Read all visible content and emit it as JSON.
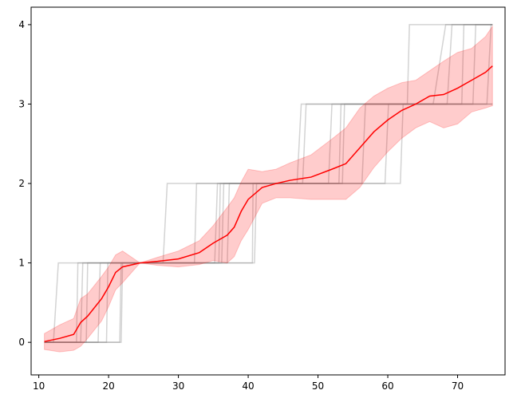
{
  "chart_data": {
    "type": "line",
    "xlim": [
      8.9,
      76.8
    ],
    "ylim": [
      -0.41,
      4.22
    ],
    "xticks": [
      10,
      20,
      30,
      40,
      50,
      60,
      70
    ],
    "yticks": [
      0,
      1,
      2,
      3,
      4
    ],
    "series": [
      {
        "color": "#808080",
        "alpha": 0.35,
        "x": [
          10.8,
          12.1,
          12.8,
          27.8,
          28.4,
          47.0,
          47.6,
          62.8,
          63.1,
          75
        ],
        "values": [
          0,
          0,
          1,
          1,
          2,
          2,
          3,
          3,
          4,
          4
        ]
      },
      {
        "color": "#808080",
        "alpha": 0.35,
        "x": [
          10.8,
          15.4,
          15.6,
          32.3,
          32.6,
          47.8,
          48.3,
          66.5,
          68.3,
          75
        ],
        "values": [
          0,
          0,
          1,
          1,
          2,
          2,
          3,
          3,
          4,
          4
        ]
      },
      {
        "color": "#808080",
        "alpha": 0.35,
        "x": [
          10.8,
          16.0,
          16.3,
          35.2,
          35.6,
          51.5,
          52.0,
          68.5,
          69.2,
          75
        ],
        "values": [
          0,
          0,
          1,
          1,
          2,
          2,
          3,
          3,
          4,
          4
        ]
      },
      {
        "color": "#808080",
        "alpha": 0.35,
        "x": [
          10.8,
          18.5,
          18.8,
          36.2,
          36.5,
          53.5,
          53.8,
          70.6,
          70.9,
          75
        ],
        "values": [
          0,
          0,
          1,
          1,
          2,
          2,
          3,
          3,
          4,
          4
        ]
      },
      {
        "color": "#808080",
        "alpha": 0.35,
        "x": [
          10.8,
          19.7,
          19.9,
          37.0,
          37.3,
          56.3,
          56.8,
          72.2,
          72.6,
          75
        ],
        "values": [
          0,
          0,
          1,
          1,
          2,
          2,
          3,
          3,
          4,
          4
        ]
      },
      {
        "color": "#808080",
        "alpha": 0.35,
        "x": [
          10.8,
          21.6,
          21.8,
          40.6,
          40.7,
          59.6,
          60.1,
          75
        ],
        "values": [
          0,
          0,
          1,
          1,
          2,
          2,
          3,
          3
        ]
      },
      {
        "color": "#808080",
        "alpha": 0.35,
        "x": [
          10.8,
          21.8,
          22.0,
          40.9,
          41.2,
          61.8,
          62.2,
          75
        ],
        "values": [
          0,
          0,
          1,
          1,
          2,
          2,
          3,
          3
        ]
      },
      {
        "color": "#808080",
        "alpha": 0.35,
        "x": [
          10.8,
          16.8,
          17.0,
          35.8,
          36.0,
          53.0,
          53.3,
          74.2,
          74.8,
          75
        ],
        "values": [
          0,
          0,
          1,
          1,
          2,
          2,
          3,
          3,
          4,
          4
        ]
      },
      {
        "color": "#ff0000",
        "alpha": 1,
        "band_alpha": 0.2,
        "x": [
          10.8,
          13,
          15,
          16,
          17,
          19,
          20,
          21,
          22,
          24.5,
          27,
          30,
          33,
          35,
          37,
          38,
          39,
          40,
          42,
          44,
          46,
          49,
          52,
          54,
          56,
          58,
          60,
          62,
          64,
          66,
          68,
          70,
          72,
          74,
          75
        ],
        "values": [
          0.01,
          0.05,
          0.1,
          0.25,
          0.33,
          0.55,
          0.7,
          0.88,
          0.95,
          1.0,
          1.02,
          1.05,
          1.13,
          1.25,
          1.35,
          1.45,
          1.65,
          1.8,
          1.95,
          2.0,
          2.04,
          2.08,
          2.18,
          2.25,
          2.45,
          2.65,
          2.8,
          2.92,
          3.0,
          3.1,
          3.12,
          3.2,
          3.3,
          3.4,
          3.48
        ],
        "lower": [
          -0.09,
          -0.12,
          -0.1,
          -0.05,
          0.05,
          0.27,
          0.45,
          0.66,
          0.75,
          1.0,
          0.97,
          0.95,
          0.98,
          1.03,
          1.0,
          1.08,
          1.28,
          1.42,
          1.75,
          1.82,
          1.82,
          1.8,
          1.8,
          1.8,
          1.95,
          2.2,
          2.4,
          2.57,
          2.7,
          2.78,
          2.7,
          2.75,
          2.9,
          2.95,
          2.98
        ],
        "upper": [
          0.11,
          0.22,
          0.3,
          0.55,
          0.61,
          0.83,
          0.95,
          1.1,
          1.15,
          1.0,
          1.07,
          1.15,
          1.28,
          1.47,
          1.7,
          1.82,
          2.02,
          2.18,
          2.15,
          2.18,
          2.26,
          2.36,
          2.56,
          2.7,
          2.95,
          3.1,
          3.2,
          3.27,
          3.3,
          3.42,
          3.54,
          3.65,
          3.7,
          3.85,
          3.98
        ]
      }
    ]
  }
}
